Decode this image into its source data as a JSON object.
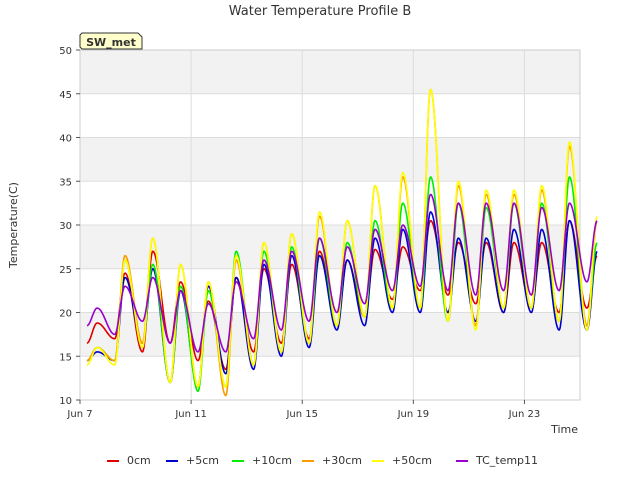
{
  "chart_data": {
    "type": "line",
    "title": "Water Temperature Profile B",
    "xlabel": "Time",
    "ylabel": "Temperature(C)",
    "badge": "SW_met",
    "x_start": "Jun 7",
    "x_range_days": [
      0,
      18
    ],
    "ylim": [
      10,
      50
    ],
    "yticks": [
      10,
      15,
      20,
      25,
      30,
      35,
      40,
      45,
      50
    ],
    "xticks": [
      {
        "label": "Jun 7",
        "day": 0
      },
      {
        "label": "Jun 11",
        "day": 4
      },
      {
        "label": "Jun 15",
        "day": 8
      },
      {
        "label": "Jun 19",
        "day": 12
      },
      {
        "label": "Jun 23",
        "day": 16
      }
    ],
    "grid": true,
    "legend_position": "bottom",
    "daily_extremes_note": "one min/max per day, day 0 = Jun 7",
    "series": [
      {
        "name": "0cm",
        "color": "#dd0000",
        "daily_max": [
          18.8,
          24.5,
          27.0,
          23.5,
          21.3,
          24.0,
          25.0,
          25.5,
          27.0,
          26.0,
          27.2,
          27.5,
          30.5,
          28.0,
          28.0,
          28.0,
          28.0,
          30.5,
          26.5
        ],
        "daily_min": [
          16.5,
          17.0,
          15.5,
          16.5,
          14.5,
          13.5,
          15.5,
          16.5,
          17.0,
          18.5,
          19.5,
          21.5,
          22.5,
          22.0,
          21.0,
          20.0,
          20.5,
          20.0,
          20.5
        ]
      },
      {
        "name": "+5cm",
        "color": "#0000cc",
        "daily_max": [
          15.5,
          24.0,
          25.0,
          22.5,
          23.0,
          24.0,
          25.5,
          26.5,
          26.5,
          26.0,
          28.5,
          29.5,
          31.5,
          28.5,
          28.5,
          29.5,
          29.5,
          30.5,
          27.0
        ],
        "daily_min": [
          14.5,
          14.5,
          16.5,
          12.0,
          11.5,
          13.0,
          13.5,
          15.0,
          16.0,
          18.0,
          18.5,
          20.0,
          20.0,
          20.0,
          19.0,
          20.0,
          20.0,
          18.0,
          18.0
        ]
      },
      {
        "name": "+10cm",
        "color": "#00ee00",
        "daily_max": [
          16.0,
          26.0,
          25.5,
          23.0,
          22.5,
          27.0,
          27.0,
          27.5,
          28.5,
          28.0,
          30.5,
          32.5,
          35.5,
          32.5,
          32.0,
          32.5,
          32.5,
          35.5,
          28.0
        ],
        "daily_min": [
          14.5,
          14.5,
          16.5,
          12.0,
          11.0,
          11.5,
          14.0,
          15.5,
          16.5,
          18.5,
          19.5,
          20.5,
          20.5,
          19.0,
          18.5,
          20.5,
          20.5,
          19.0,
          18.5
        ]
      },
      {
        "name": "+30cm",
        "color": "#ff9900",
        "daily_max": [
          16.0,
          26.5,
          28.5,
          25.5,
          23.5,
          26.0,
          28.0,
          29.0,
          31.0,
          30.5,
          34.5,
          35.5,
          45.5,
          34.5,
          33.5,
          33.5,
          34.0,
          39.0,
          30.5
        ],
        "daily_min": [
          14.5,
          14.5,
          16.5,
          12.0,
          11.5,
          10.5,
          14.0,
          15.5,
          16.5,
          18.5,
          19.5,
          20.5,
          20.5,
          19.0,
          18.5,
          20.5,
          20.5,
          19.0,
          18.5
        ]
      },
      {
        "name": "+50cm",
        "color": "#ffff00",
        "daily_max": [
          16.0,
          26.0,
          28.5,
          25.5,
          23.5,
          26.5,
          28.0,
          29.0,
          31.5,
          30.5,
          34.5,
          36.0,
          45.5,
          35.0,
          34.0,
          34.0,
          34.5,
          39.5,
          31.0
        ],
        "daily_min": [
          14.0,
          14.0,
          16.0,
          12.0,
          11.5,
          11.5,
          14.0,
          15.5,
          16.5,
          18.5,
          19.5,
          20.5,
          20.5,
          19.0,
          18.0,
          20.5,
          20.5,
          19.0,
          18.0
        ]
      },
      {
        "name": "TC_temp11",
        "color": "#9900cc",
        "daily_max": [
          20.5,
          23.0,
          24.0,
          22.5,
          21.0,
          23.5,
          26.0,
          27.0,
          28.5,
          27.5,
          29.5,
          30.0,
          33.5,
          32.5,
          32.5,
          32.5,
          32.0,
          32.5,
          30.5
        ],
        "daily_min": [
          18.5,
          17.5,
          19.0,
          16.5,
          15.5,
          15.5,
          17.0,
          18.0,
          19.0,
          20.0,
          21.0,
          22.5,
          23.0,
          22.5,
          22.0,
          22.5,
          22.0,
          22.5,
          23.5
        ]
      }
    ]
  }
}
